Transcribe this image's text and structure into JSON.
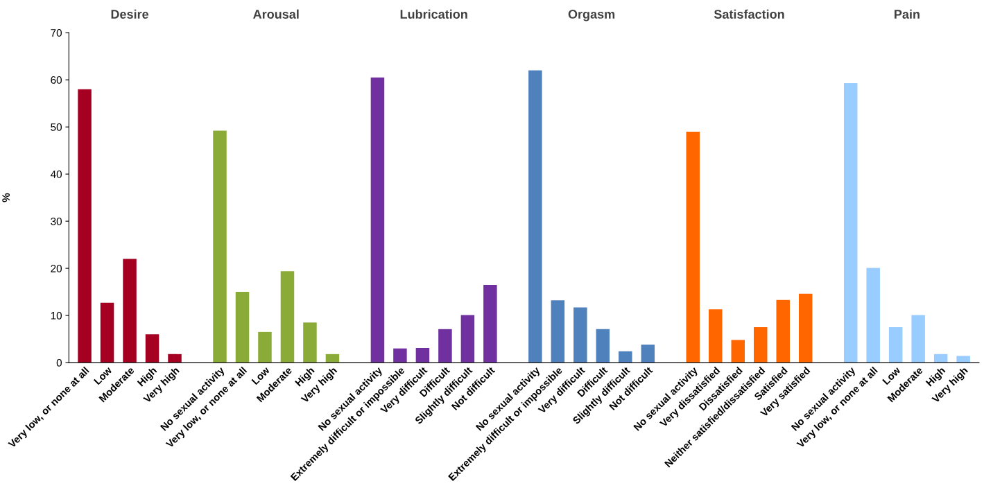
{
  "chart_data": {
    "type": "bar",
    "ylabel": "%",
    "annotations": [
      "Desire",
      "Arousal",
      "Lubrication",
      "Orgasm",
      "Satisfaction",
      "Pain"
    ],
    "categories": [
      "Very low, or none at all",
      "Low",
      "Moderate",
      "High",
      "Very high",
      null,
      "No sexual activity",
      "Very low, or none at all",
      "Low",
      "Moderate",
      "High",
      "Very high",
      null,
      "No sexual activity",
      "Extremely difficult or impossible",
      "Very difficult",
      "Difficult",
      "Slightly difficult",
      "Not difficult",
      null,
      "No sexual activity",
      "Extremely difficult or impossible",
      "Very difficult",
      "Difficult",
      "Slightly difficult",
      "Not difficult",
      null,
      "No sexual activity",
      "Very dissatisfied",
      "Dissatisfied",
      "Neither satisfied/dissatisfied",
      "Satisfied",
      "Very satisfied",
      null,
      "No sexual activity",
      "Very low, or none at all",
      "Low",
      "Moderate",
      "High",
      "Very high"
    ],
    "series": [
      {
        "color": "#a50021",
        "values": [
          58,
          12.7,
          22,
          6,
          1.8,
          null,
          null,
          null,
          null,
          null,
          null,
          null,
          null,
          null,
          null,
          null,
          null,
          null,
          null,
          null,
          null,
          null,
          null,
          null,
          null,
          null,
          null,
          null,
          null,
          null,
          null,
          null,
          null,
          null,
          null,
          null,
          null,
          null,
          null,
          null
        ]
      },
      {
        "color": "#8aab37",
        "values": [
          null,
          null,
          null,
          null,
          null,
          null,
          49.2,
          15,
          6.5,
          19.4,
          8.5,
          1.8,
          null,
          null,
          null,
          null,
          null,
          null,
          null,
          null,
          null,
          null,
          null,
          null,
          null,
          null,
          null,
          null,
          null,
          null,
          null,
          null,
          null,
          null,
          null,
          null,
          null,
          null,
          null,
          null
        ]
      },
      {
        "color": "#7030a0",
        "values": [
          null,
          null,
          null,
          null,
          null,
          null,
          null,
          null,
          null,
          null,
          null,
          null,
          null,
          60.5,
          3,
          3.1,
          7.1,
          10.1,
          16.5,
          null,
          null,
          null,
          null,
          null,
          null,
          null,
          null,
          null,
          null,
          null,
          null,
          null,
          null,
          null,
          null,
          null,
          null,
          null,
          null,
          null
        ]
      },
      {
        "color": "#4f81bd",
        "values": [
          null,
          null,
          null,
          null,
          null,
          null,
          null,
          null,
          null,
          null,
          null,
          null,
          null,
          null,
          null,
          null,
          null,
          null,
          null,
          null,
          62,
          13.2,
          11.7,
          7.1,
          2.4,
          3.8,
          null,
          null,
          null,
          null,
          null,
          null,
          null,
          null,
          null,
          null,
          null,
          null,
          null,
          null
        ]
      },
      {
        "color": "#ff6600",
        "values": [
          null,
          null,
          null,
          null,
          null,
          null,
          null,
          null,
          null,
          null,
          null,
          null,
          null,
          null,
          null,
          null,
          null,
          null,
          null,
          null,
          null,
          null,
          null,
          null,
          null,
          null,
          null,
          49,
          11.3,
          4.8,
          7.5,
          13.3,
          14.6,
          null,
          null,
          null,
          null,
          null,
          null,
          null
        ]
      },
      {
        "color": "#99ccff",
        "values": [
          null,
          null,
          null,
          null,
          null,
          null,
          null,
          null,
          null,
          null,
          null,
          null,
          null,
          null,
          null,
          null,
          null,
          null,
          null,
          null,
          null,
          null,
          null,
          null,
          null,
          null,
          null,
          null,
          null,
          null,
          null,
          null,
          null,
          null,
          59.3,
          20.1,
          7.5,
          10.1,
          1.8,
          1.4
        ]
      }
    ],
    "ylim": [
      0,
      70
    ],
    "yticks": [
      0,
      10,
      20,
      30,
      40,
      50,
      60,
      70
    ],
    "grid": false,
    "legend": false
  }
}
